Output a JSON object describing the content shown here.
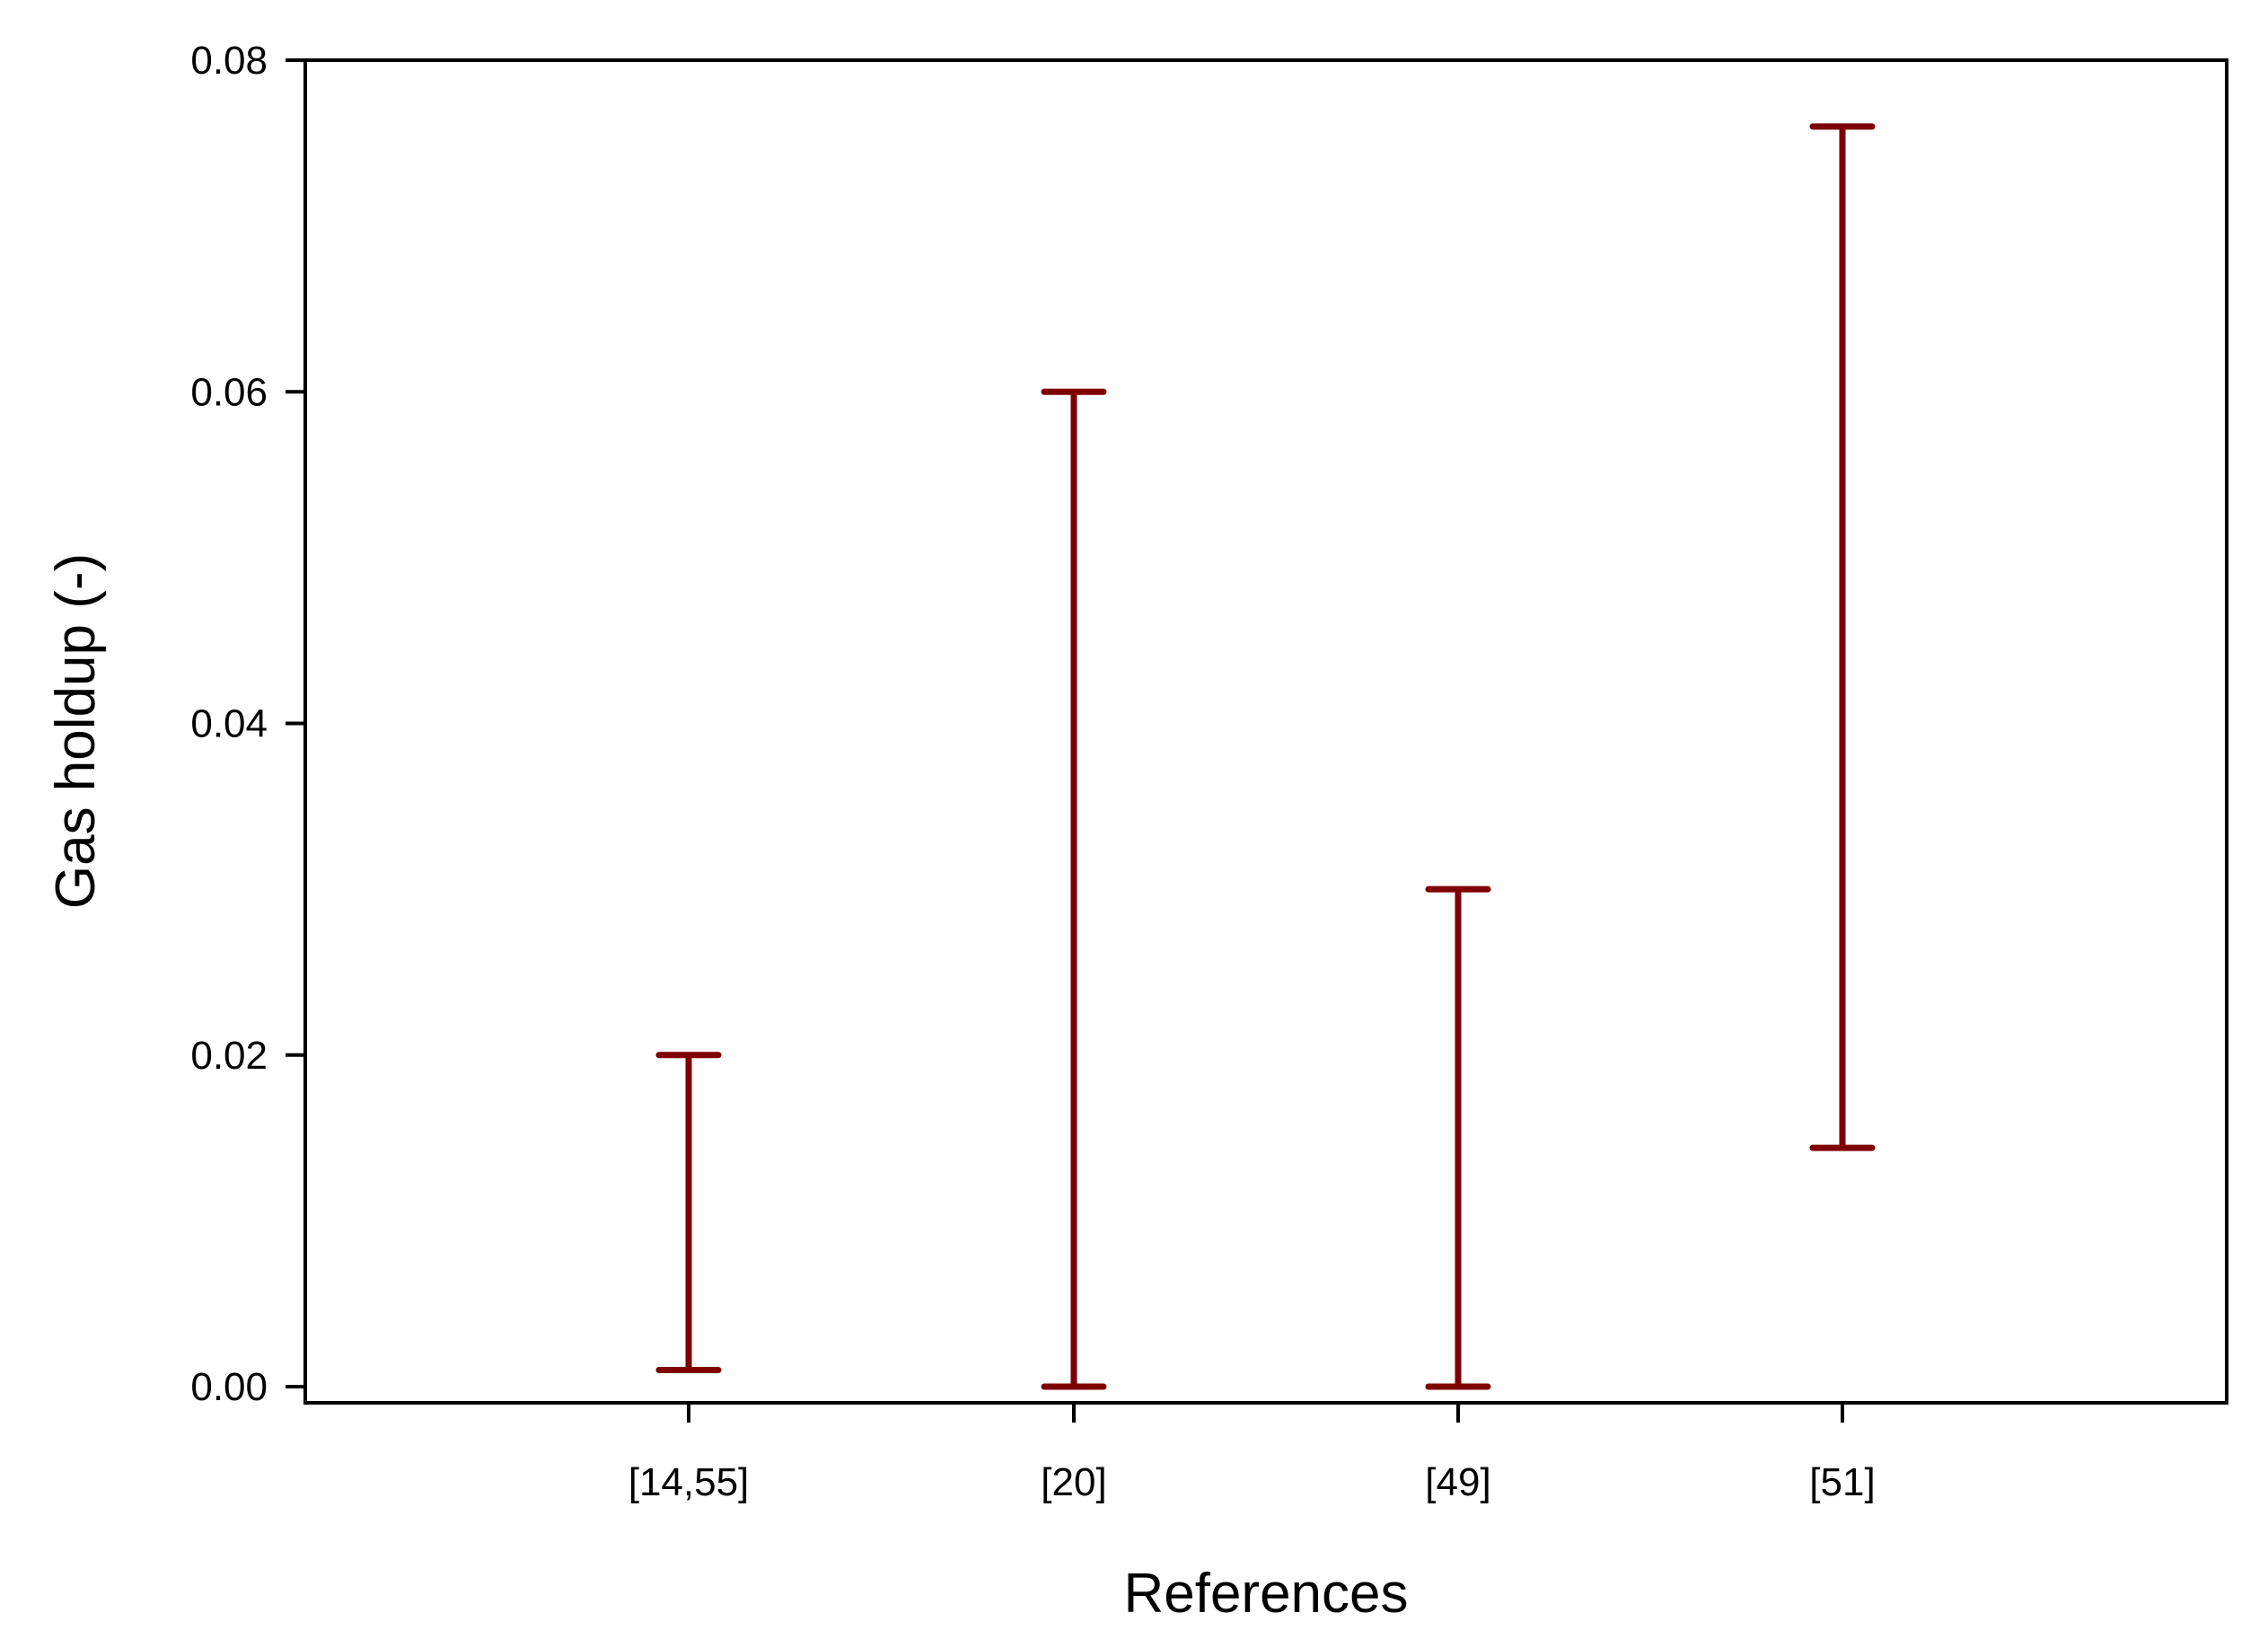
{
  "chart_data": {
    "type": "range",
    "title": "",
    "xlabel": "References",
    "ylabel": "Gas holdup (-)",
    "categories": [
      "[14,55]",
      "[20]",
      "[49]",
      "[51]"
    ],
    "series": [
      {
        "low": [
          0.001,
          0.0,
          0.0,
          0.0144
        ],
        "high": [
          0.02,
          0.06,
          0.03,
          0.076
        ]
      }
    ],
    "ylim": [
      -0.001,
      0.08
    ],
    "yticks": [
      0.0,
      0.02,
      0.04,
      0.06,
      0.08
    ],
    "ytick_labels": [
      "0.00",
      "0.02",
      "0.04",
      "0.06",
      "0.08"
    ],
    "grid": false,
    "legend": "none",
    "colors": {
      "range_bar": "#7f0000",
      "axis": "#000000",
      "background": "#ffffff"
    }
  }
}
